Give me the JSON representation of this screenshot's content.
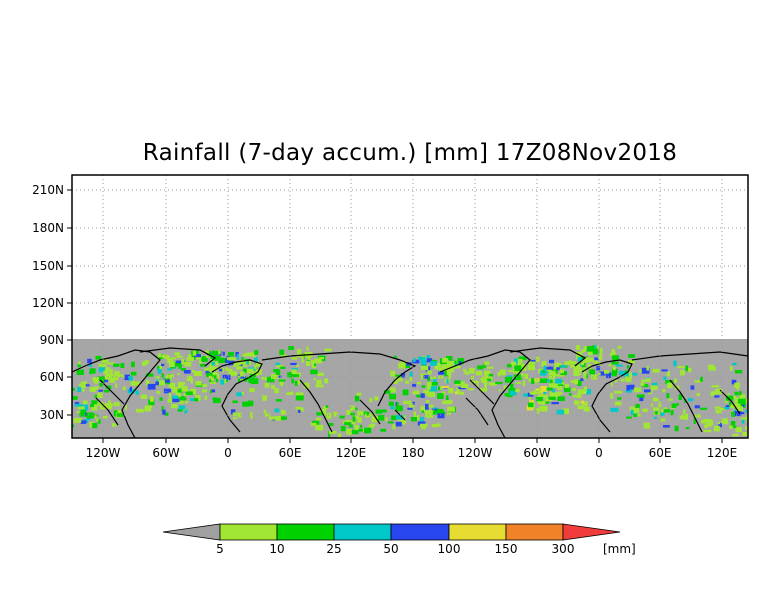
{
  "title": "Rainfall (7-day accum.) [mm] 17Z08Nov2018",
  "map": {
    "lat_ticks": [
      "210N",
      "180N",
      "150N",
      "120N",
      "90N",
      "60N",
      "30N"
    ],
    "lon_ticks": [
      "120W",
      "60W",
      "0",
      "60E",
      "120E",
      "180",
      "120W",
      "60W",
      "0",
      "60E",
      "120E"
    ],
    "colors": {
      "land": "#a6a6a6",
      "frame": "#000000",
      "grid": "#9a9a9a"
    }
  },
  "colorbar": {
    "unit": "[mm]",
    "labels": [
      "5",
      "10",
      "25",
      "50",
      "100",
      "150",
      "300"
    ],
    "colors": [
      "#a0a0a0",
      "#a0e632",
      "#00d200",
      "#00c8c8",
      "#2846f0",
      "#e6dc32",
      "#f08228",
      "#f03c3c"
    ]
  }
}
